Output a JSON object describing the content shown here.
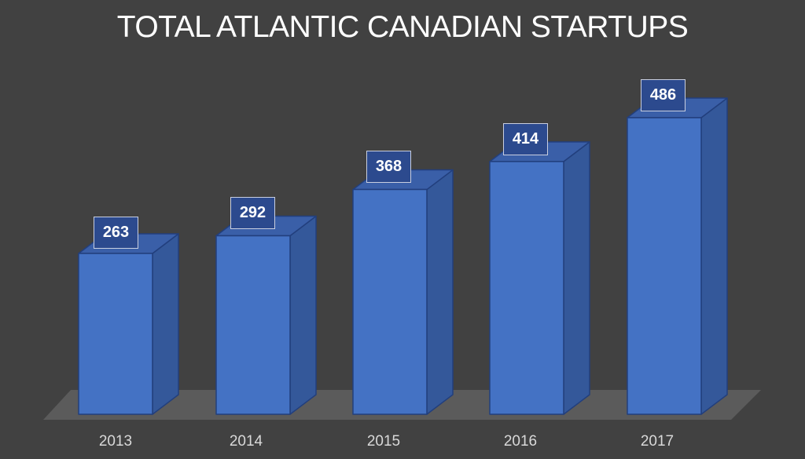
{
  "chart_data": {
    "type": "bar",
    "style": "3d-column",
    "title": "TOTAL ATLANTIC CANADIAN STARTUPS",
    "categories": [
      "2013",
      "2014",
      "2015",
      "2016",
      "2017"
    ],
    "values": [
      263,
      292,
      368,
      414,
      486
    ],
    "xlabel": "",
    "ylabel": "",
    "grid": false,
    "legend": null,
    "data_labels": [
      "263",
      "292",
      "368",
      "414",
      "486"
    ]
  },
  "colors": {
    "background": "#414141",
    "bar_front": "#4472c4",
    "bar_side": "#34589a",
    "bar_top": "#3a5fa8",
    "bar_edge": "#223f7d",
    "floor": "#5e5e5e",
    "title_text": "#ffffff",
    "axis_text": "#d9d9d9"
  }
}
